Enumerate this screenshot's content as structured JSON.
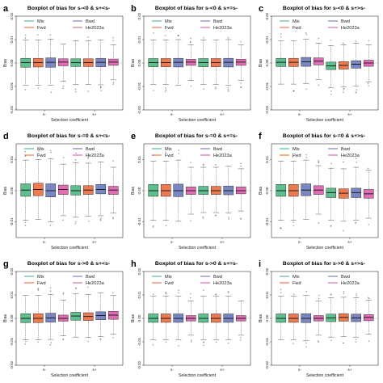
{
  "figure": {
    "legend_labels": [
      "Mix",
      "Fwd",
      "Bwd",
      "He2023a"
    ],
    "colors": {
      "Mix": "#5dbf8e",
      "Fwd": "#f07a4f",
      "Bwd": "#7a86c4",
      "He2023a": "#e06cb3"
    }
  },
  "chart_data": [
    {
      "panel": "a",
      "type": "box",
      "title": "Boxplot of bias for s-<0 & s+<s-",
      "xlabel": "Selection coefficient",
      "ylabel": "Bias",
      "ylim": [
        -0.02,
        0.02
      ],
      "yticks": [
        -0.02,
        -0.01,
        0.0,
        0.01,
        0.02
      ],
      "group_labels": [
        "s-",
        "s+"
      ],
      "series_order": [
        "Mix",
        "Fwd",
        "Bwd",
        "He2023a"
      ],
      "boxes": [
        {
          "group": "s-",
          "series": "Mix",
          "q1": -0.0018,
          "median": 0.0002,
          "q3": 0.002,
          "low": -0.0095,
          "high": 0.0098
        },
        {
          "group": "s-",
          "series": "Fwd",
          "q1": -0.0017,
          "median": 0.0002,
          "q3": 0.002,
          "low": -0.0095,
          "high": 0.0098
        },
        {
          "group": "s-",
          "series": "Bwd",
          "q1": -0.0018,
          "median": 0.0003,
          "q3": 0.0022,
          "low": -0.0095,
          "high": 0.0102
        },
        {
          "group": "s-",
          "series": "He2023a",
          "q1": -0.0012,
          "median": 0.0004,
          "q3": 0.0018,
          "low": -0.0078,
          "high": 0.0082
        },
        {
          "group": "s+",
          "series": "Mix",
          "q1": -0.0015,
          "median": 0.0002,
          "q3": 0.0018,
          "low": -0.0092,
          "high": 0.0095
        },
        {
          "group": "s+",
          "series": "Fwd",
          "q1": -0.0015,
          "median": 0.0002,
          "q3": 0.0018,
          "low": -0.0092,
          "high": 0.0095
        },
        {
          "group": "s+",
          "series": "Bwd",
          "q1": -0.0016,
          "median": 0.0003,
          "q3": 0.002,
          "low": -0.0093,
          "high": 0.0098
        },
        {
          "group": "s+",
          "series": "He2023a",
          "q1": -0.001,
          "median": 0.0004,
          "q3": 0.0017,
          "low": -0.0072,
          "high": 0.0078
        }
      ]
    },
    {
      "panel": "b",
      "type": "box",
      "title": "Boxplot of bias for s-<0 & s+=s-",
      "xlabel": "Selection coefficient",
      "ylabel": "Bias",
      "ylim": [
        -0.02,
        0.02
      ],
      "yticks": [
        -0.02,
        -0.01,
        0.0,
        0.01,
        0.02
      ],
      "group_labels": [
        "s-",
        "s+"
      ],
      "series_order": [
        "Mix",
        "Fwd",
        "Bwd",
        "He2023a"
      ],
      "boxes": [
        {
          "group": "s-",
          "series": "Mix",
          "q1": -0.0016,
          "median": 0.0002,
          "q3": 0.0019,
          "low": -0.0092,
          "high": 0.0098
        },
        {
          "group": "s-",
          "series": "Fwd",
          "q1": -0.0016,
          "median": 0.0002,
          "q3": 0.0019,
          "low": -0.0092,
          "high": 0.0098
        },
        {
          "group": "s-",
          "series": "Bwd",
          "q1": -0.0017,
          "median": 0.0003,
          "q3": 0.002,
          "low": -0.0095,
          "high": 0.01
        },
        {
          "group": "s-",
          "series": "He2023a",
          "q1": -0.001,
          "median": 0.0004,
          "q3": 0.0016,
          "low": -0.0075,
          "high": 0.0078
        },
        {
          "group": "s+",
          "series": "Mix",
          "q1": -0.0016,
          "median": 0.0002,
          "q3": 0.0019,
          "low": -0.0092,
          "high": 0.0098
        },
        {
          "group": "s+",
          "series": "Fwd",
          "q1": -0.0016,
          "median": 0.0002,
          "q3": 0.0019,
          "low": -0.0092,
          "high": 0.0098
        },
        {
          "group": "s+",
          "series": "Bwd",
          "q1": -0.0017,
          "median": 0.0003,
          "q3": 0.002,
          "low": -0.0095,
          "high": 0.01
        },
        {
          "group": "s+",
          "series": "He2023a",
          "q1": -0.001,
          "median": 0.0004,
          "q3": 0.0016,
          "low": -0.0075,
          "high": 0.0078
        }
      ]
    },
    {
      "panel": "c",
      "type": "box",
      "title": "Boxplot of bias for s-<0 & s+>s-",
      "xlabel": "Selection coefficient",
      "ylabel": "Bias",
      "ylim": [
        -0.02,
        0.02
      ],
      "yticks": [
        -0.02,
        -0.01,
        0.0,
        0.01,
        0.02
      ],
      "group_labels": [
        "s-",
        "s+"
      ],
      "series_order": [
        "Mix",
        "Fwd",
        "Bwd",
        "He2023a"
      ],
      "boxes": [
        {
          "group": "s-",
          "series": "Mix",
          "q1": -0.0015,
          "median": 0.0003,
          "q3": 0.002,
          "low": -0.009,
          "high": 0.0095
        },
        {
          "group": "s-",
          "series": "Fwd",
          "q1": -0.0015,
          "median": 0.0003,
          "q3": 0.002,
          "low": -0.009,
          "high": 0.0095
        },
        {
          "group": "s-",
          "series": "Bwd",
          "q1": -0.0014,
          "median": 0.0005,
          "q3": 0.0024,
          "low": -0.0088,
          "high": 0.0102
        },
        {
          "group": "s-",
          "series": "He2023a",
          "q1": -0.0008,
          "median": 0.0008,
          "q3": 0.0022,
          "low": -0.007,
          "high": 0.0085
        },
        {
          "group": "s+",
          "series": "Mix",
          "q1": -0.0028,
          "median": -0.0012,
          "q3": 0.0004,
          "low": -0.0105,
          "high": 0.0075
        },
        {
          "group": "s+",
          "series": "Fwd",
          "q1": -0.0026,
          "median": -0.001,
          "q3": 0.0006,
          "low": -0.0102,
          "high": 0.0078
        },
        {
          "group": "s+",
          "series": "Bwd",
          "q1": -0.0022,
          "median": -0.0005,
          "q3": 0.001,
          "low": -0.0098,
          "high": 0.0085
        },
        {
          "group": "s+",
          "series": "He2023a",
          "q1": -0.0014,
          "median": 0.0,
          "q3": 0.0012,
          "low": -0.008,
          "high": 0.0078
        }
      ]
    },
    {
      "panel": "d",
      "type": "box",
      "title": "Boxplot of bias for s-=0 & s+<s-",
      "xlabel": "Selection coefficient",
      "ylabel": "Bias",
      "ylim": [
        -0.015,
        0.015
      ],
      "yticks": [
        -0.01,
        0.0,
        0.01
      ],
      "group_labels": [
        "s-",
        "s+"
      ],
      "series_order": [
        "Mix",
        "Fwd",
        "Bwd",
        "He2023a"
      ],
      "boxes": [
        {
          "group": "s-",
          "series": "Mix",
          "q1": -0.0018,
          "median": 0.0002,
          "q3": 0.0022,
          "low": -0.0095,
          "high": 0.0098
        },
        {
          "group": "s-",
          "series": "Fwd",
          "q1": -0.0016,
          "median": 0.0004,
          "q3": 0.0024,
          "low": -0.0092,
          "high": 0.01
        },
        {
          "group": "s-",
          "series": "Bwd",
          "q1": -0.002,
          "median": 0.0,
          "q3": 0.0022,
          "low": -0.01,
          "high": 0.0102
        },
        {
          "group": "s-",
          "series": "He2023a",
          "q1": -0.0012,
          "median": 0.0004,
          "q3": 0.0018,
          "low": -0.008,
          "high": 0.0085
        },
        {
          "group": "s+",
          "series": "Mix",
          "q1": -0.0014,
          "median": 0.0,
          "q3": 0.0016,
          "low": -0.0085,
          "high": 0.009
        },
        {
          "group": "s+",
          "series": "Fwd",
          "q1": -0.0012,
          "median": 0.0002,
          "q3": 0.0016,
          "low": -0.0082,
          "high": 0.0088
        },
        {
          "group": "s+",
          "series": "Bwd",
          "q1": -0.001,
          "median": 0.0004,
          "q3": 0.002,
          "low": -0.008,
          "high": 0.0092
        },
        {
          "group": "s+",
          "series": "He2023a",
          "q1": -0.0012,
          "median": 0.0002,
          "q3": 0.0014,
          "low": -0.0072,
          "high": 0.0075
        }
      ]
    },
    {
      "panel": "e",
      "type": "box",
      "title": "Boxplot of bias for s-=0 & s+=s-",
      "xlabel": "Selection coefficient",
      "ylabel": "Bias",
      "ylim": [
        -0.015,
        0.015
      ],
      "yticks": [
        -0.01,
        0.0,
        0.01
      ],
      "group_labels": [
        "s-",
        "s+"
      ],
      "series_order": [
        "Mix",
        "Fwd",
        "Bwd",
        "He2023a"
      ],
      "boxes": [
        {
          "group": "s-",
          "series": "Mix",
          "q1": -0.0018,
          "median": 0.0,
          "q3": 0.002,
          "low": -0.0095,
          "high": 0.0095
        },
        {
          "group": "s-",
          "series": "Fwd",
          "q1": -0.0018,
          "median": 0.0,
          "q3": 0.002,
          "low": -0.0095,
          "high": 0.0095
        },
        {
          "group": "s-",
          "series": "Bwd",
          "q1": -0.0019,
          "median": 0.0,
          "q3": 0.0021,
          "low": -0.0098,
          "high": 0.0098
        },
        {
          "group": "s-",
          "series": "He2023a",
          "q1": -0.0012,
          "median": 0.0,
          "q3": 0.0012,
          "low": -0.0075,
          "high": 0.0075
        },
        {
          "group": "s+",
          "series": "Mix",
          "q1": -0.0012,
          "median": 0.0,
          "q3": 0.0014,
          "low": -0.007,
          "high": 0.0075
        },
        {
          "group": "s+",
          "series": "Fwd",
          "q1": -0.0012,
          "median": 0.0,
          "q3": 0.0014,
          "low": -0.007,
          "high": 0.0075
        },
        {
          "group": "s+",
          "series": "Bwd",
          "q1": -0.0013,
          "median": 0.0,
          "q3": 0.0015,
          "low": -0.0072,
          "high": 0.0078
        },
        {
          "group": "s+",
          "series": "He2023a",
          "q1": -0.001,
          "median": 0.0,
          "q3": 0.0012,
          "low": -0.0065,
          "high": 0.007
        }
      ]
    },
    {
      "panel": "f",
      "type": "box",
      "title": "Boxplot of bias for s-=0 & s+>s-",
      "xlabel": "Selection coefficient",
      "ylabel": "Bias",
      "ylim": [
        -0.015,
        0.015
      ],
      "yticks": [
        -0.01,
        0.0,
        0.01
      ],
      "group_labels": [
        "s-",
        "s+"
      ],
      "series_order": [
        "Mix",
        "Fwd",
        "Bwd",
        "He2023a"
      ],
      "boxes": [
        {
          "group": "s-",
          "series": "Mix",
          "q1": -0.0018,
          "median": 0.0,
          "q3": 0.002,
          "low": -0.0095,
          "high": 0.0095
        },
        {
          "group": "s-",
          "series": "Fwd",
          "q1": -0.0018,
          "median": 0.0,
          "q3": 0.002,
          "low": -0.0095,
          "high": 0.0095
        },
        {
          "group": "s-",
          "series": "Bwd",
          "q1": -0.0016,
          "median": 0.0002,
          "q3": 0.0022,
          "low": -0.0092,
          "high": 0.0098
        },
        {
          "group": "s-",
          "series": "He2023a",
          "q1": -0.0012,
          "median": 0.0002,
          "q3": 0.0016,
          "low": -0.0075,
          "high": 0.008
        },
        {
          "group": "s+",
          "series": "Mix",
          "q1": -0.0022,
          "median": -0.0006,
          "q3": 0.0008,
          "low": -0.0095,
          "high": 0.0072
        },
        {
          "group": "s+",
          "series": "Fwd",
          "q1": -0.0024,
          "median": -0.0008,
          "q3": 0.0006,
          "low": -0.0098,
          "high": 0.007
        },
        {
          "group": "s+",
          "series": "Bwd",
          "q1": -0.0022,
          "median": -0.0006,
          "q3": 0.0008,
          "low": -0.0095,
          "high": 0.0075
        },
        {
          "group": "s+",
          "series": "He2023a",
          "q1": -0.0024,
          "median": -0.001,
          "q3": 0.0004,
          "low": -0.0088,
          "high": 0.0065
        }
      ]
    },
    {
      "panel": "g",
      "type": "box",
      "title": "Boxplot of bias for s->0 & s+<s-",
      "xlabel": "Selection coefficient",
      "ylabel": "Bias",
      "ylim": [
        -0.02,
        0.02
      ],
      "yticks": [
        -0.02,
        -0.01,
        0.0,
        0.01,
        0.02
      ],
      "group_labels": [
        "s-",
        "s+"
      ],
      "series_order": [
        "Mix",
        "Fwd",
        "Bwd",
        "He2023a"
      ],
      "boxes": [
        {
          "group": "s-",
          "series": "Mix",
          "q1": -0.0018,
          "median": 0.0,
          "q3": 0.002,
          "low": -0.0092,
          "high": 0.0098
        },
        {
          "group": "s-",
          "series": "Fwd",
          "q1": -0.0018,
          "median": 0.0,
          "q3": 0.002,
          "low": -0.0092,
          "high": 0.0098
        },
        {
          "group": "s-",
          "series": "Bwd",
          "q1": -0.0016,
          "median": 0.0002,
          "q3": 0.0022,
          "low": -0.009,
          "high": 0.0102
        },
        {
          "group": "s-",
          "series": "He2023a",
          "q1": -0.0012,
          "median": 0.0,
          "q3": 0.0014,
          "low": -0.0075,
          "high": 0.0078
        },
        {
          "group": "s+",
          "series": "Mix",
          "q1": -0.0008,
          "median": 0.001,
          "q3": 0.0026,
          "low": -0.008,
          "high": 0.0105
        },
        {
          "group": "s+",
          "series": "Fwd",
          "q1": -0.0009,
          "median": 0.0008,
          "q3": 0.0024,
          "low": -0.0082,
          "high": 0.0102
        },
        {
          "group": "s+",
          "series": "Bwd",
          "q1": -0.0006,
          "median": 0.0012,
          "q3": 0.0028,
          "low": -0.0078,
          "high": 0.0108
        },
        {
          "group": "s+",
          "series": "He2023a",
          "q1": -0.0004,
          "median": 0.0014,
          "q3": 0.003,
          "low": -0.0068,
          "high": 0.0098
        }
      ]
    },
    {
      "panel": "h",
      "type": "box",
      "title": "Boxplot of bias for s->0 & s+=s-",
      "xlabel": "Selection coefficient",
      "ylabel": "Bias",
      "ylim": [
        -0.02,
        0.02
      ],
      "yticks": [
        -0.02,
        -0.01,
        0.0,
        0.01,
        0.02
      ],
      "group_labels": [
        "s-",
        "s+"
      ],
      "series_order": [
        "Mix",
        "Fwd",
        "Bwd",
        "He2023a"
      ],
      "boxes": [
        {
          "group": "s-",
          "series": "Mix",
          "q1": -0.0017,
          "median": 0.0,
          "q3": 0.0019,
          "low": -0.0092,
          "high": 0.0095
        },
        {
          "group": "s-",
          "series": "Fwd",
          "q1": -0.0017,
          "median": 0.0,
          "q3": 0.0019,
          "low": -0.0092,
          "high": 0.0095
        },
        {
          "group": "s-",
          "series": "Bwd",
          "q1": -0.0017,
          "median": 0.0,
          "q3": 0.0019,
          "low": -0.0092,
          "high": 0.0095
        },
        {
          "group": "s-",
          "series": "He2023a",
          "q1": -0.0011,
          "median": 0.0,
          "q3": 0.0012,
          "low": -0.0072,
          "high": 0.0075
        },
        {
          "group": "s+",
          "series": "Mix",
          "q1": -0.0017,
          "median": 0.0,
          "q3": 0.0019,
          "low": -0.0092,
          "high": 0.0095
        },
        {
          "group": "s+",
          "series": "Fwd",
          "q1": -0.0017,
          "median": 0.0,
          "q3": 0.0019,
          "low": -0.0092,
          "high": 0.0095
        },
        {
          "group": "s+",
          "series": "Bwd",
          "q1": -0.0017,
          "median": 0.0,
          "q3": 0.0019,
          "low": -0.0092,
          "high": 0.0095
        },
        {
          "group": "s+",
          "series": "He2023a",
          "q1": -0.0011,
          "median": 0.0,
          "q3": 0.0012,
          "low": -0.0072,
          "high": 0.0075
        }
      ]
    },
    {
      "panel": "i",
      "type": "box",
      "title": "Boxplot of bias for s->0 & s+>s-",
      "xlabel": "Selection coefficient",
      "ylabel": "Bias",
      "ylim": [
        -0.02,
        0.02
      ],
      "yticks": [
        -0.02,
        -0.01,
        0.0,
        0.01,
        0.02
      ],
      "group_labels": [
        "s-",
        "s+"
      ],
      "series_order": [
        "Mix",
        "Fwd",
        "Bwd",
        "He2023a"
      ],
      "boxes": [
        {
          "group": "s-",
          "series": "Mix",
          "q1": -0.0017,
          "median": 0.0,
          "q3": 0.0019,
          "low": -0.0092,
          "high": 0.0095
        },
        {
          "group": "s-",
          "series": "Fwd",
          "q1": -0.0017,
          "median": 0.0,
          "q3": 0.0019,
          "low": -0.0092,
          "high": 0.0095
        },
        {
          "group": "s-",
          "series": "Bwd",
          "q1": -0.0018,
          "median": 0.0,
          "q3": 0.002,
          "low": -0.0095,
          "high": 0.0098
        },
        {
          "group": "s-",
          "series": "He2023a",
          "q1": -0.0011,
          "median": 0.0,
          "q3": 0.0012,
          "low": -0.0072,
          "high": 0.0075
        },
        {
          "group": "s+",
          "series": "Mix",
          "q1": -0.0014,
          "median": 0.0002,
          "q3": 0.0018,
          "low": -0.008,
          "high": 0.0088
        },
        {
          "group": "s+",
          "series": "Fwd",
          "q1": -0.0012,
          "median": 0.0004,
          "q3": 0.002,
          "low": -0.0078,
          "high": 0.009
        },
        {
          "group": "s+",
          "series": "Bwd",
          "q1": -0.0014,
          "median": 0.0002,
          "q3": 0.0018,
          "low": -0.008,
          "high": 0.0088
        },
        {
          "group": "s+",
          "series": "He2023a",
          "q1": -0.001,
          "median": 0.0004,
          "q3": 0.0016,
          "low": -0.0068,
          "high": 0.0078
        }
      ]
    }
  ]
}
